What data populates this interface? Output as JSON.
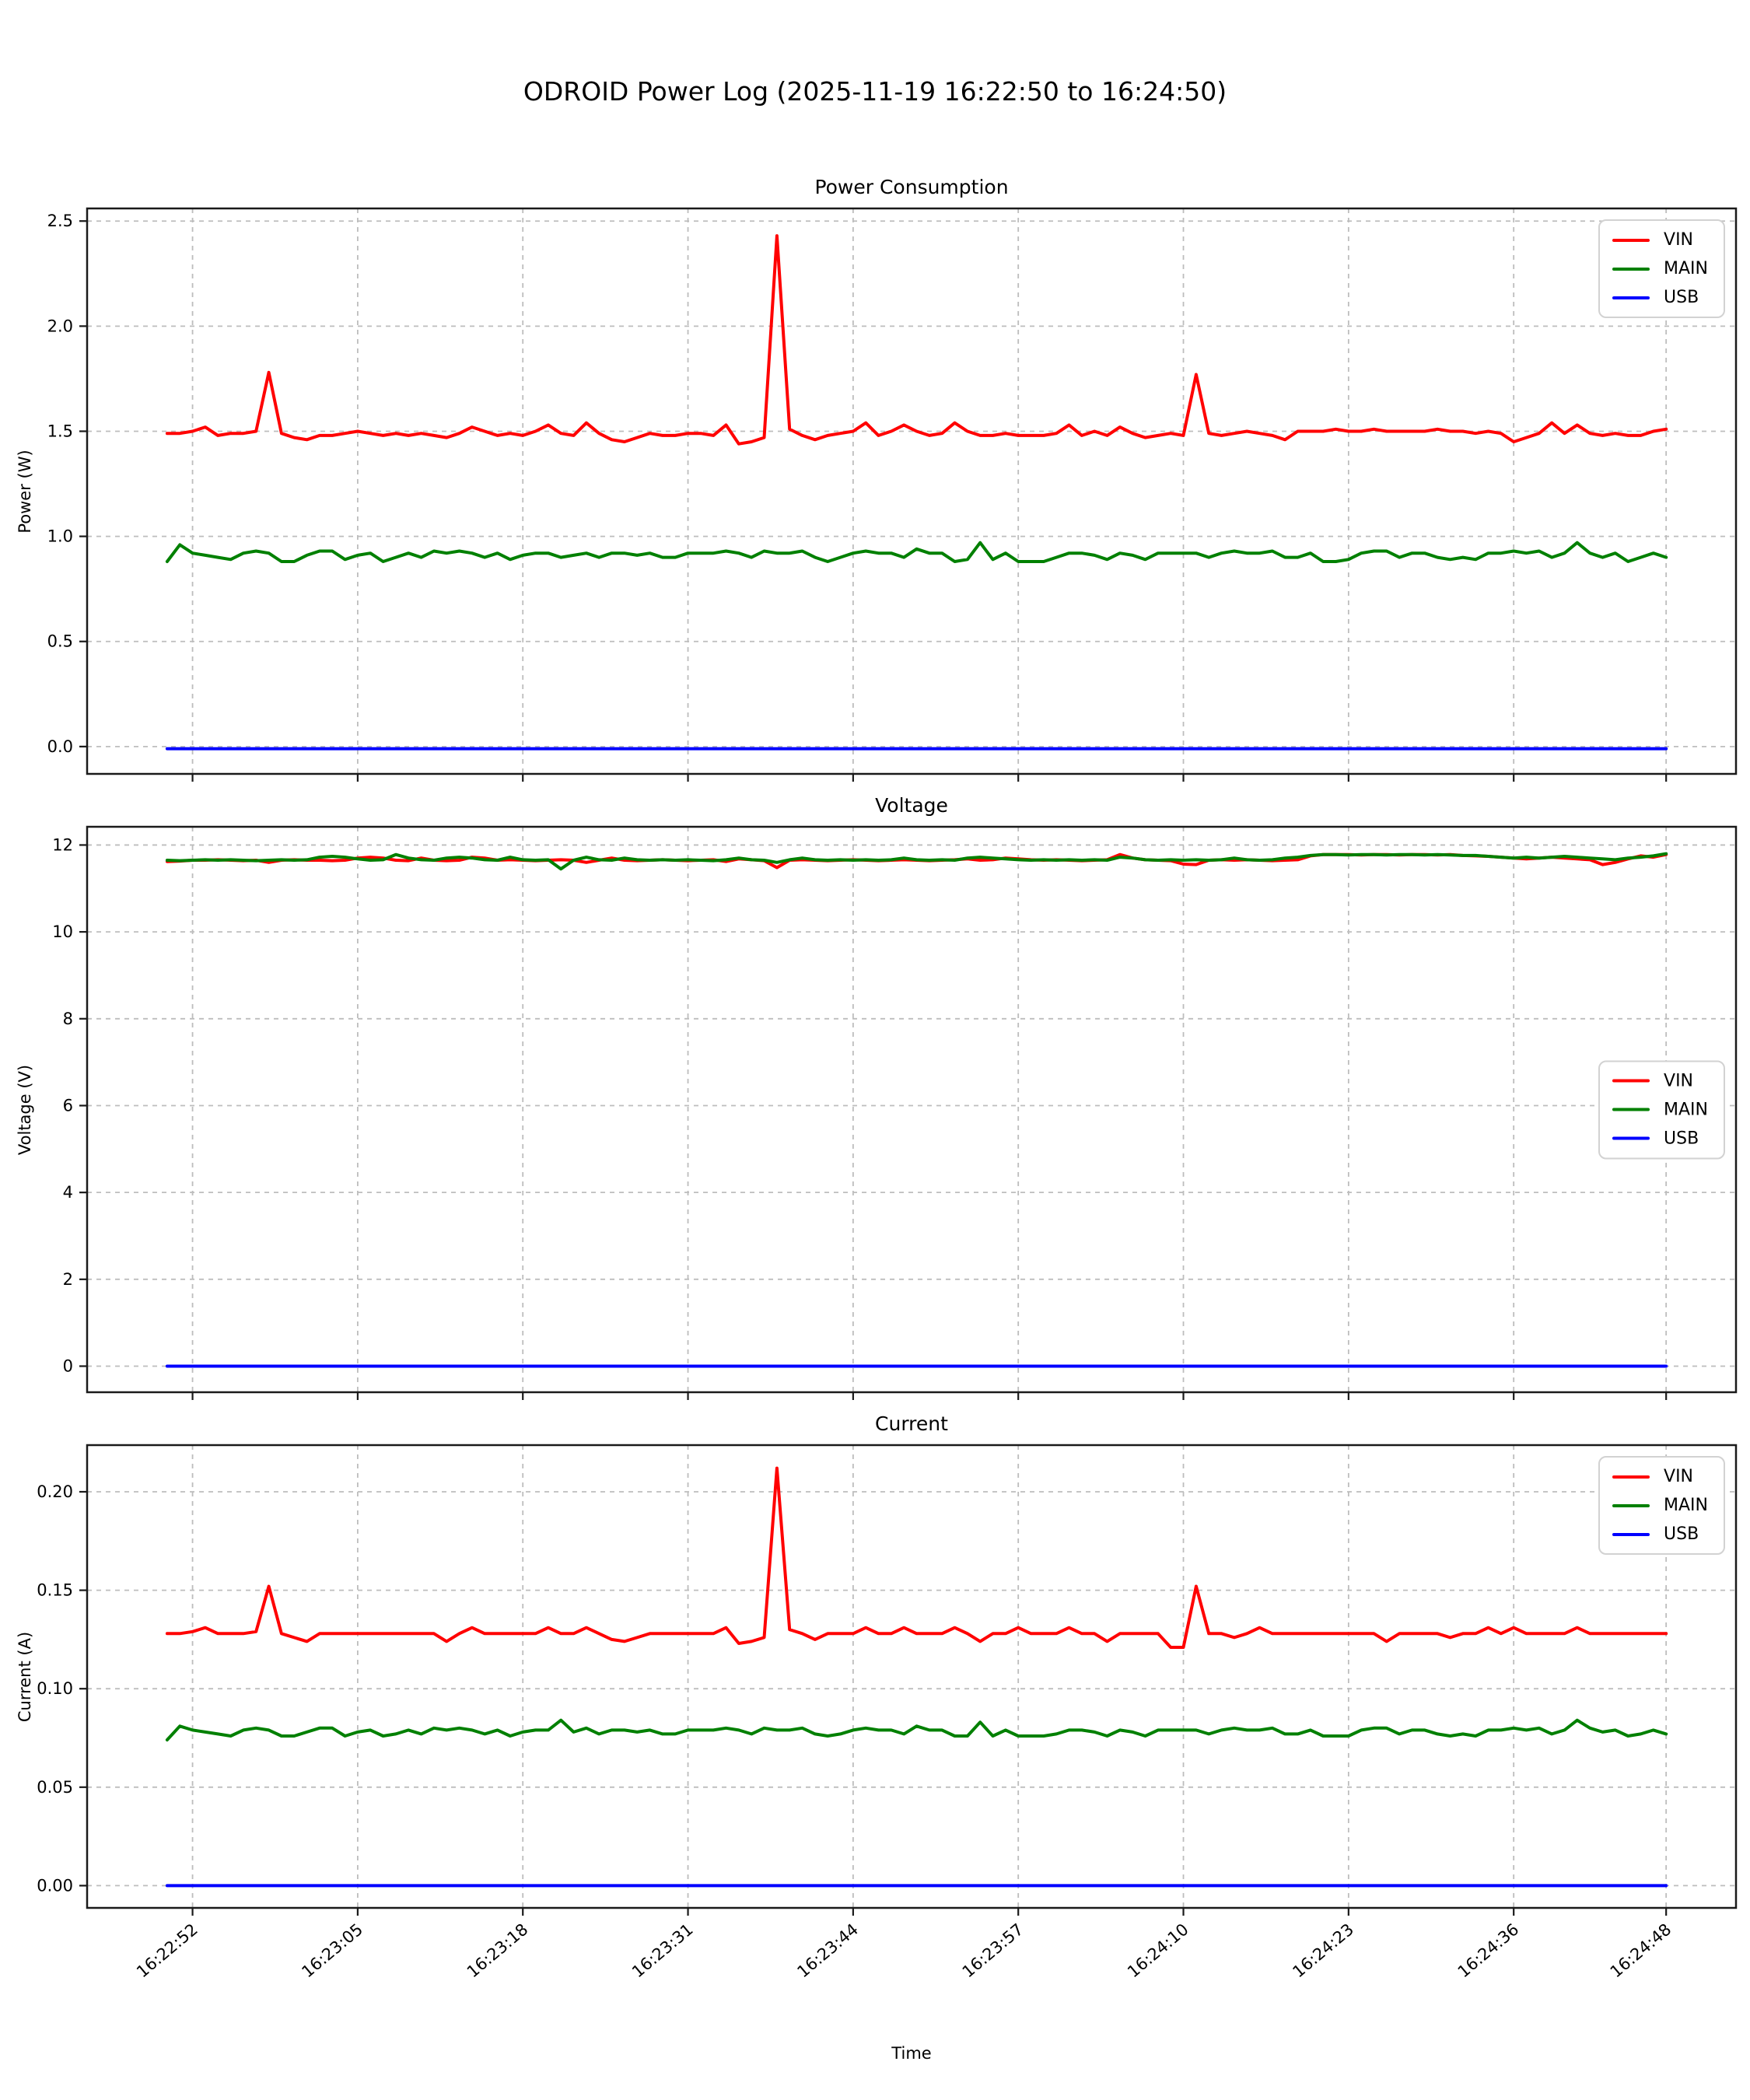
{
  "title": "ODROID Power Log (2025-11-19 16:22:50 to 16:24:50)",
  "x_axis": {
    "label": "Time",
    "start_time": "16:22:50",
    "end_time": "16:24:50",
    "sample_interval_s": 1,
    "tick_labels": [
      "16:22:52",
      "16:23:05",
      "16:23:18",
      "16:23:31",
      "16:23:44",
      "16:23:57",
      "16:24:10",
      "16:24:23",
      "16:24:36",
      "16:24:48"
    ]
  },
  "chart_data": [
    {
      "type": "line",
      "title": "Power Consumption",
      "ylabel": "Power (W)",
      "xlabel": "",
      "grid": true,
      "legend_position": "upper right",
      "ylim": [
        -0.13,
        2.56
      ],
      "x_domain_s": [
        -6.3,
        123.5
      ],
      "t_span_s": [
        0,
        118
      ],
      "x_ticks_s": [
        2,
        15,
        28,
        41,
        54,
        67,
        80,
        93,
        106,
        118
      ],
      "x_tick_labels": [],
      "show_x_tick_labels": false,
      "y_ticks": [
        0.0,
        0.5,
        1.0,
        1.5,
        2.0,
        2.5
      ],
      "y_tick_labels": [
        "0.0",
        "0.5",
        "1.0",
        "1.5",
        "2.0",
        "2.5"
      ],
      "series": [
        {
          "name": "VIN",
          "color": "#ff0000",
          "values": [
            1.49,
            1.49,
            1.5,
            1.52,
            1.48,
            1.49,
            1.49,
            1.5,
            1.78,
            1.49,
            1.47,
            1.46,
            1.48,
            1.48,
            1.49,
            1.5,
            1.49,
            1.48,
            1.49,
            1.48,
            1.49,
            1.48,
            1.47,
            1.49,
            1.52,
            1.5,
            1.48,
            1.49,
            1.48,
            1.5,
            1.53,
            1.49,
            1.48,
            1.54,
            1.49,
            1.46,
            1.45,
            1.47,
            1.49,
            1.48,
            1.48,
            1.49,
            1.49,
            1.48,
            1.53,
            1.44,
            1.45,
            1.47,
            2.43,
            1.51,
            1.48,
            1.46,
            1.48,
            1.49,
            1.5,
            1.54,
            1.48,
            1.5,
            1.53,
            1.5,
            1.48,
            1.49,
            1.54,
            1.5,
            1.48,
            1.48,
            1.49,
            1.48,
            1.48,
            1.48,
            1.49,
            1.53,
            1.48,
            1.5,
            1.48,
            1.52,
            1.49,
            1.47,
            1.48,
            1.49,
            1.48,
            1.77,
            1.49,
            1.48,
            1.49,
            1.5,
            1.49,
            1.48,
            1.46,
            1.5,
            1.5,
            1.5,
            1.51,
            1.5,
            1.5,
            1.51,
            1.5,
            1.5,
            1.5,
            1.5,
            1.51,
            1.5,
            1.5,
            1.49,
            1.5,
            1.49,
            1.45,
            1.47,
            1.49,
            1.54,
            1.49,
            1.53,
            1.49,
            1.48,
            1.49,
            1.48,
            1.48,
            1.5,
            1.51
          ]
        },
        {
          "name": "MAIN",
          "color": "#008000",
          "values": [
            0.88,
            0.96,
            0.92,
            0.91,
            0.9,
            0.89,
            0.92,
            0.93,
            0.92,
            0.88,
            0.88,
            0.91,
            0.93,
            0.93,
            0.89,
            0.91,
            0.92,
            0.88,
            0.9,
            0.92,
            0.9,
            0.93,
            0.92,
            0.93,
            0.92,
            0.9,
            0.92,
            0.89,
            0.91,
            0.92,
            0.92,
            0.9,
            0.91,
            0.92,
            0.9,
            0.92,
            0.92,
            0.91,
            0.92,
            0.9,
            0.9,
            0.92,
            0.92,
            0.92,
            0.93,
            0.92,
            0.9,
            0.93,
            0.92,
            0.92,
            0.93,
            0.9,
            0.88,
            0.9,
            0.92,
            0.93,
            0.92,
            0.92,
            0.9,
            0.94,
            0.92,
            0.92,
            0.88,
            0.89,
            0.97,
            0.89,
            0.92,
            0.88,
            0.88,
            0.88,
            0.9,
            0.92,
            0.92,
            0.91,
            0.89,
            0.92,
            0.91,
            0.89,
            0.92,
            0.92,
            0.92,
            0.92,
            0.9,
            0.92,
            0.93,
            0.92,
            0.92,
            0.93,
            0.9,
            0.9,
            0.92,
            0.88,
            0.88,
            0.89,
            0.92,
            0.93,
            0.93,
            0.9,
            0.92,
            0.92,
            0.9,
            0.89,
            0.9,
            0.89,
            0.92,
            0.92,
            0.93,
            0.92,
            0.93,
            0.9,
            0.92,
            0.97,
            0.92,
            0.9,
            0.92,
            0.88,
            0.9,
            0.92,
            0.9
          ]
        },
        {
          "name": "USB",
          "color": "#0000ff",
          "const_value": -0.01
        }
      ]
    },
    {
      "type": "line",
      "title": "Voltage",
      "ylabel": "Voltage (V)",
      "xlabel": "",
      "grid": true,
      "legend_position": "center right",
      "ylim": [
        -0.6,
        12.42
      ],
      "x_domain_s": [
        -6.3,
        123.5
      ],
      "t_span_s": [
        0,
        118
      ],
      "x_ticks_s": [
        2,
        15,
        28,
        41,
        54,
        67,
        80,
        93,
        106,
        118
      ],
      "x_tick_labels": [],
      "show_x_tick_labels": false,
      "y_ticks": [
        0,
        2,
        4,
        6,
        8,
        10,
        12
      ],
      "y_tick_labels": [
        "0",
        "2",
        "4",
        "6",
        "8",
        "10",
        "12"
      ],
      "series": [
        {
          "name": "VIN",
          "color": "#ff0000",
          "values": [
            11.62,
            11.63,
            11.65,
            11.65,
            11.66,
            11.65,
            11.64,
            11.65,
            11.6,
            11.65,
            11.66,
            11.65,
            11.65,
            11.64,
            11.65,
            11.7,
            11.72,
            11.7,
            11.65,
            11.64,
            11.7,
            11.65,
            11.64,
            11.65,
            11.72,
            11.7,
            11.65,
            11.66,
            11.65,
            11.64,
            11.65,
            11.66,
            11.65,
            11.6,
            11.65,
            11.7,
            11.65,
            11.64,
            11.65,
            11.66,
            11.65,
            11.64,
            11.65,
            11.66,
            11.62,
            11.68,
            11.66,
            11.64,
            11.48,
            11.65,
            11.66,
            11.65,
            11.64,
            11.65,
            11.66,
            11.65,
            11.64,
            11.65,
            11.66,
            11.65,
            11.64,
            11.65,
            11.66,
            11.68,
            11.65,
            11.66,
            11.7,
            11.68,
            11.66,
            11.65,
            11.66,
            11.65,
            11.64,
            11.65,
            11.66,
            11.78,
            11.7,
            11.66,
            11.65,
            11.64,
            11.56,
            11.55,
            11.65,
            11.66,
            11.65,
            11.66,
            11.65,
            11.64,
            11.65,
            11.66,
            11.75,
            11.78,
            11.78,
            11.78,
            11.77,
            11.78,
            11.78,
            11.77,
            11.78,
            11.78,
            11.77,
            11.78,
            11.76,
            11.75,
            11.74,
            11.72,
            11.7,
            11.68,
            11.7,
            11.72,
            11.7,
            11.68,
            11.66,
            11.55,
            11.6,
            11.68,
            11.75,
            11.72,
            11.78
          ]
        },
        {
          "name": "MAIN",
          "color": "#008000",
          "values": [
            11.65,
            11.64,
            11.65,
            11.66,
            11.65,
            11.66,
            11.65,
            11.64,
            11.65,
            11.66,
            11.65,
            11.66,
            11.72,
            11.74,
            11.72,
            11.68,
            11.65,
            11.66,
            11.78,
            11.7,
            11.66,
            11.65,
            11.7,
            11.72,
            11.7,
            11.66,
            11.65,
            11.72,
            11.66,
            11.65,
            11.66,
            11.45,
            11.65,
            11.72,
            11.66,
            11.65,
            11.7,
            11.66,
            11.65,
            11.66,
            11.65,
            11.66,
            11.65,
            11.64,
            11.66,
            11.7,
            11.66,
            11.65,
            11.6,
            11.66,
            11.7,
            11.66,
            11.65,
            11.66,
            11.65,
            11.66,
            11.65,
            11.66,
            11.7,
            11.66,
            11.65,
            11.66,
            11.65,
            11.7,
            11.72,
            11.7,
            11.68,
            11.66,
            11.65,
            11.66,
            11.65,
            11.66,
            11.65,
            11.66,
            11.65,
            11.72,
            11.7,
            11.66,
            11.65,
            11.66,
            11.65,
            11.66,
            11.65,
            11.66,
            11.7,
            11.66,
            11.65,
            11.66,
            11.7,
            11.72,
            11.76,
            11.78,
            11.78,
            11.77,
            11.78,
            11.78,
            11.77,
            11.78,
            11.78,
            11.77,
            11.78,
            11.77,
            11.76,
            11.76,
            11.74,
            11.72,
            11.7,
            11.72,
            11.7,
            11.72,
            11.74,
            11.72,
            11.7,
            11.68,
            11.66,
            11.7,
            11.72,
            11.75,
            11.8
          ]
        },
        {
          "name": "USB",
          "color": "#0000ff",
          "const_value": 0.0
        }
      ]
    },
    {
      "type": "line",
      "title": "Current",
      "ylabel": "Current (A)",
      "xlabel": "Time",
      "grid": true,
      "legend_position": "upper right",
      "ylim": [
        -0.0113,
        0.2237
      ],
      "x_domain_s": [
        -6.3,
        123.5
      ],
      "t_span_s": [
        0,
        118
      ],
      "x_ticks_s": [
        2,
        15,
        28,
        41,
        54,
        67,
        80,
        93,
        106,
        118
      ],
      "x_tick_labels": [
        "16:22:52",
        "16:23:05",
        "16:23:18",
        "16:23:31",
        "16:23:44",
        "16:23:57",
        "16:24:10",
        "16:24:23",
        "16:24:36",
        "16:24:48"
      ],
      "show_x_tick_labels": true,
      "y_ticks": [
        0.0,
        0.05,
        0.1,
        0.15,
        0.2
      ],
      "y_tick_labels": [
        "0.00",
        "0.05",
        "0.10",
        "0.15",
        "0.20"
      ],
      "series": [
        {
          "name": "VIN",
          "color": "#ff0000",
          "values": [
            0.128,
            0.128,
            0.129,
            0.131,
            0.128,
            0.128,
            0.128,
            0.129,
            0.152,
            0.128,
            0.126,
            0.124,
            0.128,
            0.128,
            0.128,
            0.128,
            0.128,
            0.128,
            0.128,
            0.128,
            0.128,
            0.128,
            0.124,
            0.128,
            0.131,
            0.128,
            0.128,
            0.128,
            0.128,
            0.128,
            0.131,
            0.128,
            0.128,
            0.131,
            0.128,
            0.125,
            0.124,
            0.126,
            0.128,
            0.128,
            0.128,
            0.128,
            0.128,
            0.128,
            0.131,
            0.123,
            0.124,
            0.126,
            0.212,
            0.13,
            0.128,
            0.125,
            0.128,
            0.128,
            0.128,
            0.131,
            0.128,
            0.128,
            0.131,
            0.128,
            0.128,
            0.128,
            0.131,
            0.128,
            0.124,
            0.128,
            0.128,
            0.131,
            0.128,
            0.128,
            0.128,
            0.131,
            0.128,
            0.128,
            0.124,
            0.128,
            0.128,
            0.128,
            0.128,
            0.121,
            0.121,
            0.152,
            0.128,
            0.128,
            0.126,
            0.128,
            0.131,
            0.128,
            0.128,
            0.128,
            0.128,
            0.128,
            0.128,
            0.128,
            0.128,
            0.128,
            0.124,
            0.128,
            0.128,
            0.128,
            0.128,
            0.126,
            0.128,
            0.128,
            0.131,
            0.128,
            0.131,
            0.128,
            0.128,
            0.128,
            0.128,
            0.131,
            0.128,
            0.128,
            0.128,
            0.128,
            0.128,
            0.128,
            0.128
          ]
        },
        {
          "name": "MAIN",
          "color": "#008000",
          "values": [
            0.074,
            0.081,
            0.079,
            0.078,
            0.077,
            0.076,
            0.079,
            0.08,
            0.079,
            0.076,
            0.076,
            0.078,
            0.08,
            0.08,
            0.076,
            0.078,
            0.079,
            0.076,
            0.077,
            0.079,
            0.077,
            0.08,
            0.079,
            0.08,
            0.079,
            0.077,
            0.079,
            0.076,
            0.078,
            0.079,
            0.079,
            0.084,
            0.078,
            0.08,
            0.077,
            0.079,
            0.079,
            0.078,
            0.079,
            0.077,
            0.077,
            0.079,
            0.079,
            0.079,
            0.08,
            0.079,
            0.077,
            0.08,
            0.079,
            0.079,
            0.08,
            0.077,
            0.076,
            0.077,
            0.079,
            0.08,
            0.079,
            0.079,
            0.077,
            0.081,
            0.079,
            0.079,
            0.076,
            0.076,
            0.083,
            0.076,
            0.079,
            0.076,
            0.076,
            0.076,
            0.077,
            0.079,
            0.079,
            0.078,
            0.076,
            0.079,
            0.078,
            0.076,
            0.079,
            0.079,
            0.079,
            0.079,
            0.077,
            0.079,
            0.08,
            0.079,
            0.079,
            0.08,
            0.077,
            0.077,
            0.079,
            0.076,
            0.076,
            0.076,
            0.079,
            0.08,
            0.08,
            0.077,
            0.079,
            0.079,
            0.077,
            0.076,
            0.077,
            0.076,
            0.079,
            0.079,
            0.08,
            0.079,
            0.08,
            0.077,
            0.079,
            0.084,
            0.08,
            0.078,
            0.079,
            0.076,
            0.077,
            0.079,
            0.077
          ]
        },
        {
          "name": "USB",
          "color": "#0000ff",
          "const_value": 0.0
        }
      ]
    }
  ]
}
